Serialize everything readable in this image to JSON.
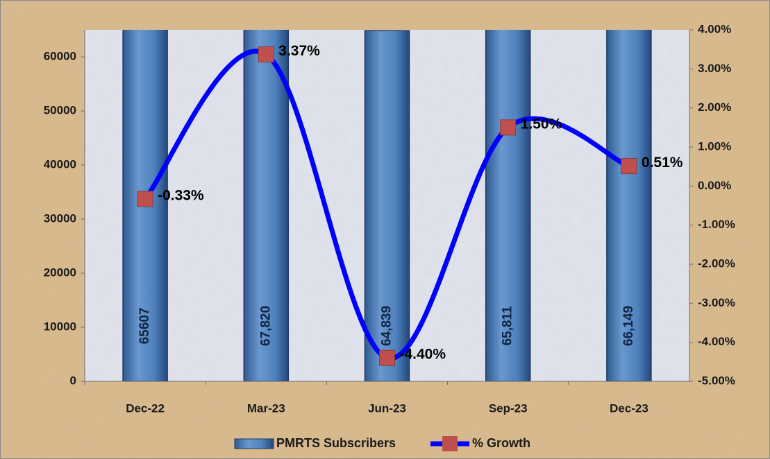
{
  "chart_data": {
    "type": "combo",
    "categories": [
      "Dec-22",
      "Mar-23",
      "Jun-23",
      "Sep-23",
      "Dec-23"
    ],
    "series": [
      {
        "name": "PMRTS Subscribers",
        "type": "bar",
        "color": "#4f81bd",
        "values": [
          65607,
          67820,
          64839,
          65811,
          66149
        ],
        "value_labels": [
          "65607",
          "67,820",
          "64,839",
          "65,811",
          "66,149"
        ]
      },
      {
        "name": "% Growth",
        "type": "line",
        "axis": "y2",
        "color": "#0000ff",
        "marker_color": "#c0504d",
        "values": [
          -0.33,
          3.37,
          -4.4,
          1.5,
          0.51
        ],
        "value_labels": [
          "-0.33%",
          "3.37%",
          "-4.40%",
          "1.50%",
          "0.51%"
        ]
      }
    ],
    "ylim": [
      0,
      65000
    ],
    "yticks": [
      0,
      10000,
      20000,
      30000,
      40000,
      50000,
      60000
    ],
    "y2lim": [
      -5,
      4
    ],
    "y2ticks": [
      {
        "value": -5,
        "label": "-5.00%"
      },
      {
        "value": -4,
        "label": "-4.00%"
      },
      {
        "value": -3,
        "label": "-3.00%"
      },
      {
        "value": -2,
        "label": "-2.00%"
      },
      {
        "value": -1,
        "label": "-1.00%"
      },
      {
        "value": 0,
        "label": "0.00%"
      },
      {
        "value": 1,
        "label": "1.00%"
      },
      {
        "value": 2,
        "label": "2.00%"
      },
      {
        "value": 3,
        "label": "3.00%"
      },
      {
        "value": 4,
        "label": "4.00%"
      }
    ],
    "grid": false,
    "legend": "bottom"
  }
}
